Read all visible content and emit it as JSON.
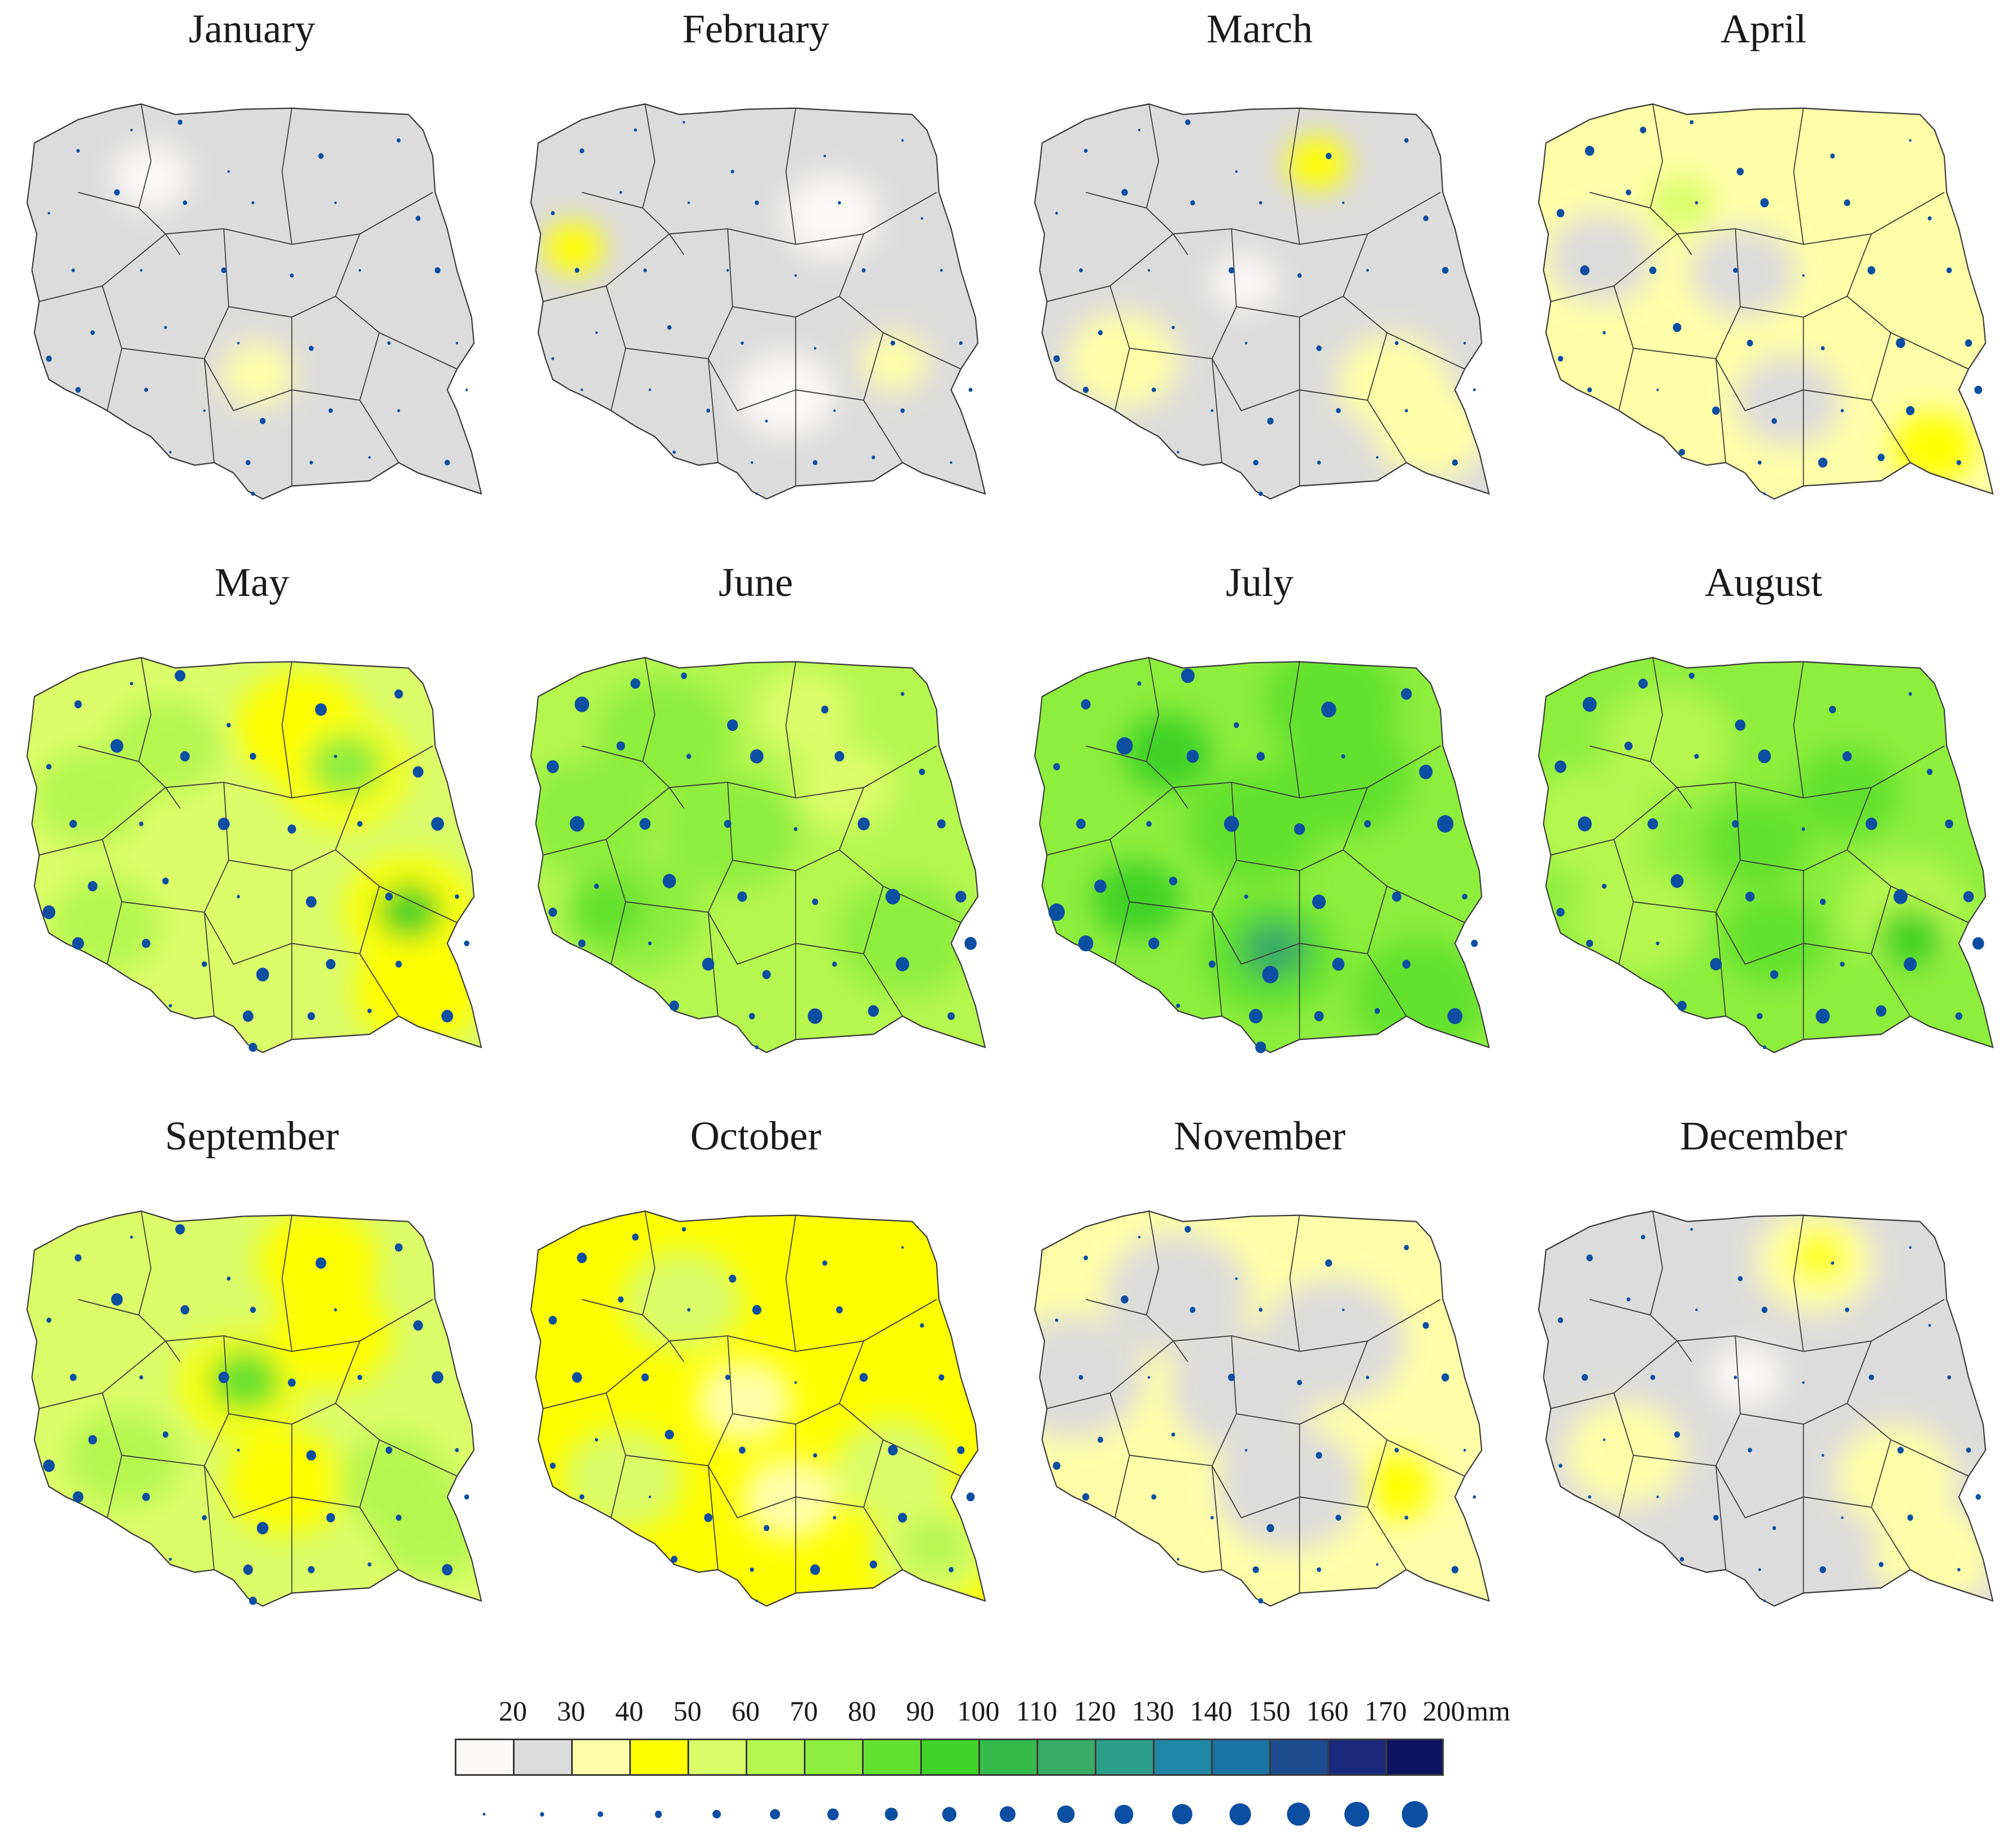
{
  "months": [
    "January",
    "February",
    "March",
    "April",
    "May",
    "June",
    "July",
    "August",
    "September",
    "October",
    "November",
    "December"
  ],
  "legend": {
    "thresholds": [
      "20",
      "30",
      "40",
      "50",
      "60",
      "70",
      "80",
      "90",
      "100",
      "110",
      "120",
      "130",
      "140",
      "150",
      "160",
      "170",
      "200"
    ],
    "unit": "mm",
    "colors": [
      "#fbf9f7",
      "#dcdcdc",
      "#fffea8",
      "#ffff00",
      "#dcfd6a",
      "#b6f74f",
      "#8eee3d",
      "#63e12f",
      "#3fd228",
      "#35ba4c",
      "#38ab66",
      "#2b9d88",
      "#2088a6",
      "#1a73a2",
      "#1d4c8e",
      "#1b2a7c",
      "#0e145f"
    ],
    "station_dot_color": "#0b4ea2"
  },
  "panels": [
    {
      "month": "January",
      "zones": [
        {
          "c": "#dcdcdc",
          "w": 1
        },
        {
          "c": "#fbf9f7",
          "w": 0.12
        },
        {
          "c": "#fffea8",
          "w": 0.1
        }
      ],
      "dot_scale": 0.5
    },
    {
      "month": "February",
      "zones": [
        {
          "c": "#dcdcdc",
          "w": 1
        },
        {
          "c": "#fbf9f7",
          "w": 0.25
        },
        {
          "c": "#fffea8",
          "w": 0.06
        },
        {
          "c": "#ffff00",
          "w": 0.02
        }
      ],
      "dot_scale": 0.4
    },
    {
      "month": "March",
      "zones": [
        {
          "c": "#dcdcdc",
          "w": 1
        },
        {
          "c": "#fffea8",
          "w": 0.35
        },
        {
          "c": "#fbf9f7",
          "w": 0.05
        },
        {
          "c": "#ffff00",
          "w": 0.03
        }
      ],
      "dot_scale": 0.55
    },
    {
      "month": "April",
      "zones": [
        {
          "c": "#fffea8",
          "w": 1
        },
        {
          "c": "#dcdcdc",
          "w": 0.3
        },
        {
          "c": "#ffff00",
          "w": 0.15
        },
        {
          "c": "#dcfd6a",
          "w": 0.05
        }
      ],
      "dot_scale": 0.8
    },
    {
      "month": "May",
      "zones": [
        {
          "c": "#dcfd6a",
          "w": 1
        },
        {
          "c": "#ffff00",
          "w": 0.45
        },
        {
          "c": "#b6f74f",
          "w": 0.35
        },
        {
          "c": "#8eee3d",
          "w": 0.12
        },
        {
          "c": "#3fd228",
          "w": 0.05
        }
      ],
      "dot_scale": 1.1
    },
    {
      "month": "June",
      "zones": [
        {
          "c": "#b6f74f",
          "w": 1
        },
        {
          "c": "#8eee3d",
          "w": 0.5
        },
        {
          "c": "#dcfd6a",
          "w": 0.25
        },
        {
          "c": "#63e12f",
          "w": 0.12
        }
      ],
      "dot_scale": 1.25
    },
    {
      "month": "July",
      "zones": [
        {
          "c": "#8eee3d",
          "w": 1
        },
        {
          "c": "#63e12f",
          "w": 0.5
        },
        {
          "c": "#3fd228",
          "w": 0.2
        },
        {
          "c": "#38ab66",
          "w": 0.06
        }
      ],
      "dot_scale": 1.4
    },
    {
      "month": "August",
      "zones": [
        {
          "c": "#8eee3d",
          "w": 1
        },
        {
          "c": "#b6f74f",
          "w": 0.45
        },
        {
          "c": "#63e12f",
          "w": 0.3
        },
        {
          "c": "#3fd228",
          "w": 0.06
        }
      ],
      "dot_scale": 1.2
    },
    {
      "month": "September",
      "zones": [
        {
          "c": "#dcfd6a",
          "w": 1
        },
        {
          "c": "#ffff00",
          "w": 0.4
        },
        {
          "c": "#b6f74f",
          "w": 0.35
        },
        {
          "c": "#63e12f",
          "w": 0.1
        }
      ],
      "dot_scale": 1.0
    },
    {
      "month": "October",
      "zones": [
        {
          "c": "#ffff00",
          "w": 1
        },
        {
          "c": "#dcfd6a",
          "w": 0.4
        },
        {
          "c": "#fffea8",
          "w": 0.25
        },
        {
          "c": "#b6f74f",
          "w": 0.05
        }
      ],
      "dot_scale": 0.85
    },
    {
      "month": "November",
      "zones": [
        {
          "c": "#fffea8",
          "w": 1
        },
        {
          "c": "#dcdcdc",
          "w": 0.55
        },
        {
          "c": "#ffff00",
          "w": 0.1
        }
      ],
      "dot_scale": 0.65
    },
    {
      "month": "December",
      "zones": [
        {
          "c": "#dcdcdc",
          "w": 1
        },
        {
          "c": "#fffea8",
          "w": 0.4
        },
        {
          "c": "#fbf9f7",
          "w": 0.08
        },
        {
          "c": "#ffff00",
          "w": 0.03
        }
      ],
      "dot_scale": 0.55
    }
  ]
}
